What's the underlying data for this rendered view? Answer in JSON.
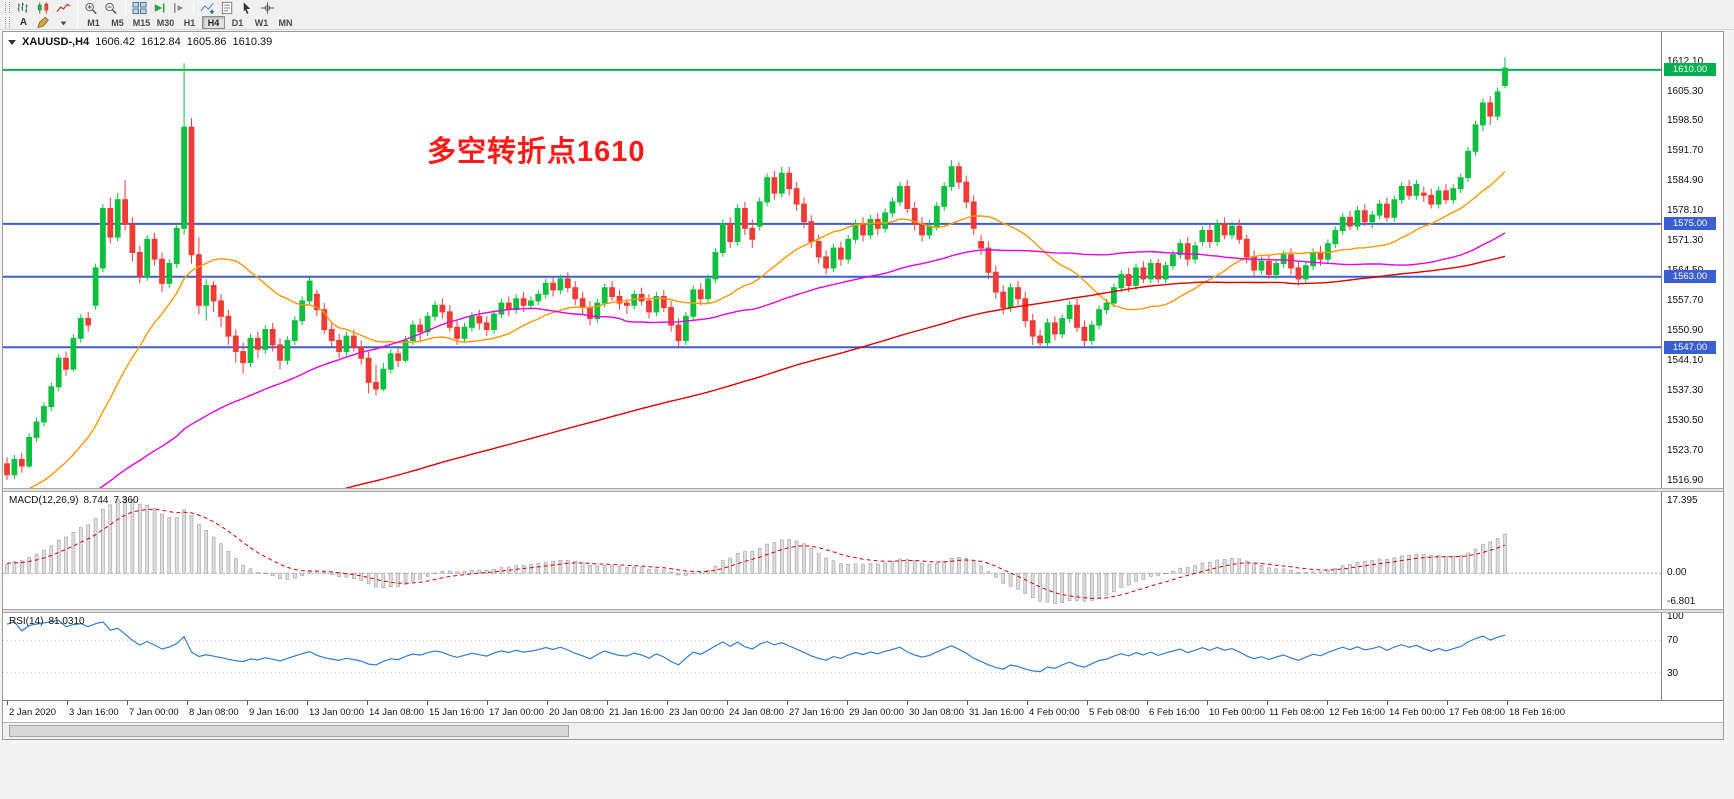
{
  "toolbar": {
    "row1_icons": [
      "bar-chart-icon",
      "candlestick-chart-icon",
      "line-chart-icon",
      "zoom-in-icon",
      "zoom-out-icon",
      "tile-windows-icon",
      "auto-scroll-icon",
      "chart-shift-icon",
      "indicators-icon",
      "templates-icon",
      "cursor-icon",
      "crosshair-icon"
    ],
    "text_tool_label": "A",
    "draw_tool_icons": [
      "pencil-icon",
      "dropdown-arrow-icon"
    ],
    "timeframes": [
      "M1",
      "M5",
      "M15",
      "M30",
      "H1",
      "H4",
      "D1",
      "W1",
      "MN"
    ],
    "active_timeframe": "H4"
  },
  "chart_data": {
    "type": "candlestick",
    "header": {
      "title": "XAUUSD-,H4",
      "open": "1606.42",
      "high": "1612.84",
      "low": "1605.86",
      "close": "1610.39"
    },
    "ylim": [
      1515.0,
      1618.6
    ],
    "colors": {
      "up": "#0fbf3f",
      "down": "#ef3b36",
      "background": "#ffffff"
    },
    "moving_averages": [
      {
        "name": "ma-fast",
        "window": 20,
        "color": "#ff9800"
      },
      {
        "name": "ma-mid",
        "window": 60,
        "color": "#e600e6"
      },
      {
        "name": "ma-slow",
        "window": 150,
        "color": "#dd0000"
      }
    ],
    "hlines": [
      {
        "price": 1610.0,
        "label": "1610.00",
        "color": "#00b050",
        "width": 2
      },
      {
        "price": 1575.0,
        "label": "1575.00",
        "color": "#3a5fd0",
        "width": 2
      },
      {
        "price": 1563.0,
        "label": "1563.00",
        "color": "#3a5fd0",
        "width": 2
      },
      {
        "price": 1547.0,
        "label": "1547.00",
        "color": "#3a5fd0",
        "width": 2
      }
    ],
    "annotation": {
      "text": "多空转折点1610",
      "color": "#ff1a1a"
    },
    "price_axis_labels": [
      "1612.10",
      "1605.30",
      "1598.50",
      "1591.70",
      "1584.90",
      "1578.10",
      "1571.30",
      "1564.50",
      "1557.70",
      "1550.90",
      "1544.10",
      "1537.30",
      "1530.50",
      "1523.70",
      "1516.90"
    ],
    "time_axis_labels": [
      "2 Jan 2020",
      "3 Jan 16:00",
      "7 Jan 00:00",
      "8 Jan 08:00",
      "9 Jan 16:00",
      "13 Jan 00:00",
      "14 Jan 08:00",
      "15 Jan 16:00",
      "17 Jan 00:00",
      "20 Jan 08:00",
      "21 Jan 16:00",
      "23 Jan 00:00",
      "24 Jan 08:00",
      "27 Jan 16:00",
      "29 Jan 00:00",
      "30 Jan 08:00",
      "31 Jan 16:00",
      "4 Feb 00:00",
      "5 Feb 08:00",
      "6 Feb 16:00",
      "10 Feb 00:00",
      "11 Feb 08:00",
      "12 Feb 16:00",
      "14 Feb 00:00",
      "17 Feb 08:00",
      "18 Feb 16:00"
    ],
    "macd": {
      "label": "MACD(12,26,9)",
      "value_main": "8.744",
      "value_signal": "7.360",
      "fast": 12,
      "slow": 26,
      "signal": 9,
      "axis_labels": [
        "17.395",
        "0.00",
        "-6.801"
      ],
      "hist_fill": "#dedede",
      "hist_stroke": "#9e9e9e",
      "signal_color": "#dd0000"
    },
    "rsi": {
      "label": "RSI(14)",
      "value": "81.0310",
      "period": 14,
      "axis_labels": [
        "100",
        "70",
        "30"
      ],
      "levels": [
        70,
        30
      ],
      "color": "#2f7ed8"
    },
    "candles": [
      [
        1520.5,
        1522.0,
        1516.8,
        1518.0
      ],
      [
        1518.0,
        1522.5,
        1517.0,
        1521.5
      ],
      [
        1521.5,
        1523.0,
        1518.5,
        1520.0
      ],
      [
        1520.0,
        1527.5,
        1519.5,
        1526.5
      ],
      [
        1526.5,
        1531.0,
        1525.5,
        1530.0
      ],
      [
        1530.0,
        1534.5,
        1529.0,
        1533.5
      ],
      [
        1533.5,
        1539.0,
        1532.5,
        1538.0
      ],
      [
        1538.0,
        1545.5,
        1537.0,
        1544.5
      ],
      [
        1544.5,
        1546.0,
        1540.5,
        1542.0
      ],
      [
        1542.0,
        1550.0,
        1541.5,
        1549.0
      ],
      [
        1549.0,
        1554.5,
        1548.0,
        1553.5
      ],
      [
        1553.5,
        1555.0,
        1550.5,
        1552.0
      ],
      [
        1556.5,
        1566.0,
        1555.5,
        1565.0
      ],
      [
        1565.0,
        1579.5,
        1564.0,
        1578.5
      ],
      [
        1578.5,
        1581.0,
        1570.5,
        1572.0
      ],
      [
        1572.0,
        1582.0,
        1571.0,
        1580.5
      ],
      [
        1580.5,
        1585.0,
        1573.5,
        1575.0
      ],
      [
        1575.0,
        1576.5,
        1566.5,
        1568.5
      ],
      [
        1568.5,
        1570.0,
        1561.5,
        1563.0
      ],
      [
        1563.0,
        1572.5,
        1562.0,
        1571.5
      ],
      [
        1571.5,
        1573.0,
        1565.5,
        1567.0
      ],
      [
        1567.0,
        1568.5,
        1559.5,
        1561.5
      ],
      [
        1561.5,
        1567.0,
        1560.5,
        1566.0
      ],
      [
        1566.0,
        1575.0,
        1565.0,
        1574.0
      ],
      [
        1574.0,
        1611.5,
        1572.5,
        1597.0
      ],
      [
        1597.0,
        1599.0,
        1566.0,
        1568.0
      ],
      [
        1568.0,
        1572.0,
        1554.5,
        1556.5
      ],
      [
        1556.5,
        1562.5,
        1553.0,
        1561.0
      ],
      [
        1561.0,
        1562.0,
        1555.0,
        1557.5
      ],
      [
        1557.5,
        1559.0,
        1551.5,
        1554.0
      ],
      [
        1554.0,
        1555.5,
        1547.5,
        1549.5
      ],
      [
        1549.5,
        1551.0,
        1543.5,
        1546.0
      ],
      [
        1546.0,
        1548.0,
        1541.0,
        1543.5
      ],
      [
        1543.5,
        1550.0,
        1542.5,
        1549.0
      ],
      [
        1549.0,
        1550.5,
        1544.5,
        1546.5
      ],
      [
        1546.5,
        1552.0,
        1545.5,
        1551.0
      ],
      [
        1551.0,
        1552.5,
        1546.0,
        1547.5
      ],
      [
        1547.5,
        1549.0,
        1542.0,
        1544.0
      ],
      [
        1544.0,
        1549.5,
        1543.0,
        1548.5
      ],
      [
        1548.5,
        1554.0,
        1547.5,
        1553.0
      ],
      [
        1553.0,
        1558.5,
        1552.0,
        1557.5
      ],
      [
        1557.5,
        1563.0,
        1556.5,
        1562.0
      ],
      [
        1559.0,
        1560.0,
        1554.0,
        1555.5
      ],
      [
        1555.5,
        1557.0,
        1550.0,
        1551.0
      ],
      [
        1551.0,
        1552.5,
        1547.0,
        1548.5
      ],
      [
        1548.5,
        1550.0,
        1544.5,
        1546.0
      ],
      [
        1546.0,
        1550.5,
        1545.0,
        1549.5
      ],
      [
        1549.5,
        1551.0,
        1546.0,
        1547.0
      ],
      [
        1547.0,
        1548.5,
        1543.0,
        1544.5
      ],
      [
        1544.5,
        1546.0,
        1536.5,
        1539.0
      ],
      [
        1539.0,
        1543.0,
        1536.0,
        1537.5
      ],
      [
        1537.5,
        1543.5,
        1537.0,
        1542.0
      ],
      [
        1542.0,
        1546.5,
        1541.0,
        1545.5
      ],
      [
        1545.5,
        1547.0,
        1542.5,
        1544.0
      ],
      [
        1544.0,
        1549.5,
        1543.5,
        1548.5
      ],
      [
        1548.5,
        1553.0,
        1547.5,
        1552.0
      ],
      [
        1552.0,
        1553.5,
        1548.5,
        1550.5
      ],
      [
        1550.5,
        1555.0,
        1549.5,
        1554.0
      ],
      [
        1554.0,
        1557.5,
        1553.0,
        1556.5
      ],
      [
        1556.5,
        1558.0,
        1553.5,
        1555.0
      ],
      [
        1555.0,
        1556.5,
        1550.5,
        1551.5
      ],
      [
        1551.5,
        1553.0,
        1547.5,
        1549.0
      ],
      [
        1549.0,
        1552.5,
        1548.0,
        1551.5
      ],
      [
        1551.5,
        1555.0,
        1550.5,
        1554.0
      ],
      [
        1554.0,
        1555.5,
        1551.0,
        1552.5
      ],
      [
        1552.5,
        1554.0,
        1549.5,
        1551.0
      ],
      [
        1551.0,
        1555.5,
        1550.0,
        1554.5
      ],
      [
        1554.5,
        1558.0,
        1553.5,
        1557.0
      ],
      [
        1557.0,
        1558.5,
        1554.0,
        1555.5
      ],
      [
        1555.5,
        1559.0,
        1554.5,
        1558.0
      ],
      [
        1558.0,
        1559.5,
        1555.0,
        1556.5
      ],
      [
        1556.5,
        1558.5,
        1555.5,
        1557.5
      ],
      [
        1557.5,
        1560.0,
        1556.5,
        1559.0
      ],
      [
        1559.0,
        1562.5,
        1558.0,
        1561.5
      ],
      [
        1561.5,
        1563.0,
        1558.5,
        1560.0
      ],
      [
        1560.0,
        1563.5,
        1559.0,
        1562.5
      ],
      [
        1562.5,
        1564.0,
        1559.5,
        1560.5
      ],
      [
        1560.5,
        1562.0,
        1556.5,
        1558.0
      ],
      [
        1558.0,
        1559.5,
        1554.5,
        1556.0
      ],
      [
        1556.0,
        1557.5,
        1552.0,
        1553.5
      ],
      [
        1553.5,
        1558.0,
        1552.5,
        1557.0
      ],
      [
        1557.0,
        1561.5,
        1556.0,
        1560.5
      ],
      [
        1560.5,
        1562.0,
        1557.5,
        1558.5
      ],
      [
        1558.5,
        1560.0,
        1555.5,
        1557.0
      ],
      [
        1557.0,
        1558.0,
        1554.5,
        1556.5
      ],
      [
        1556.5,
        1560.0,
        1555.5,
        1559.0
      ],
      [
        1559.0,
        1560.5,
        1556.5,
        1557.5
      ],
      [
        1557.5,
        1559.0,
        1553.5,
        1555.0
      ],
      [
        1555.0,
        1559.5,
        1554.0,
        1558.5
      ],
      [
        1558.5,
        1560.0,
        1555.0,
        1556.0
      ],
      [
        1556.0,
        1557.5,
        1550.5,
        1552.0
      ],
      [
        1552.0,
        1553.5,
        1547.0,
        1548.5
      ],
      [
        1548.5,
        1555.0,
        1547.5,
        1554.0
      ],
      [
        1554.0,
        1561.0,
        1553.0,
        1560.0
      ],
      [
        1560.0,
        1561.5,
        1556.5,
        1558.0
      ],
      [
        1558.0,
        1563.5,
        1557.0,
        1562.5
      ],
      [
        1562.5,
        1569.5,
        1561.5,
        1568.5
      ],
      [
        1568.5,
        1576.0,
        1567.5,
        1575.0
      ],
      [
        1575.0,
        1576.5,
        1569.5,
        1571.0
      ],
      [
        1571.0,
        1579.5,
        1570.0,
        1578.5
      ],
      [
        1578.5,
        1580.0,
        1572.5,
        1574.0
      ],
      [
        1574.0,
        1576.0,
        1569.5,
        1571.5
      ],
      [
        1574.5,
        1581.0,
        1573.5,
        1580.0
      ],
      [
        1580.0,
        1586.5,
        1579.0,
        1585.5
      ],
      [
        1585.5,
        1587.0,
        1580.5,
        1582.0
      ],
      [
        1582.0,
        1588.0,
        1581.0,
        1586.5
      ],
      [
        1586.5,
        1588.0,
        1581.5,
        1583.0
      ],
      [
        1583.0,
        1584.5,
        1578.0,
        1579.5
      ],
      [
        1579.5,
        1581.0,
        1574.0,
        1575.5
      ],
      [
        1575.5,
        1577.0,
        1569.5,
        1571.0
      ],
      [
        1571.0,
        1572.5,
        1566.0,
        1567.5
      ],
      [
        1567.5,
        1569.0,
        1563.5,
        1565.0
      ],
      [
        1565.0,
        1570.5,
        1564.0,
        1569.5
      ],
      [
        1569.5,
        1571.0,
        1565.5,
        1567.0
      ],
      [
        1567.0,
        1572.5,
        1566.0,
        1571.5
      ],
      [
        1571.5,
        1576.0,
        1570.5,
        1575.0
      ],
      [
        1575.0,
        1576.5,
        1571.0,
        1572.5
      ],
      [
        1572.5,
        1577.0,
        1571.5,
        1576.0
      ],
      [
        1576.0,
        1577.5,
        1572.5,
        1574.0
      ],
      [
        1574.0,
        1578.5,
        1573.0,
        1577.5
      ],
      [
        1577.5,
        1581.0,
        1576.5,
        1580.0
      ],
      [
        1580.0,
        1584.5,
        1579.0,
        1583.5
      ],
      [
        1583.5,
        1585.0,
        1577.5,
        1578.5
      ],
      [
        1578.5,
        1580.0,
        1573.5,
        1575.0
      ],
      [
        1575.0,
        1576.5,
        1571.0,
        1572.5
      ],
      [
        1572.5,
        1576.0,
        1571.5,
        1574.5
      ],
      [
        1574.5,
        1580.0,
        1573.5,
        1579.0
      ],
      [
        1579.0,
        1584.5,
        1578.0,
        1583.5
      ],
      [
        1583.5,
        1589.5,
        1582.5,
        1588.0
      ],
      [
        1588.0,
        1589.0,
        1583.0,
        1584.5
      ],
      [
        1584.5,
        1586.0,
        1578.5,
        1580.0
      ],
      [
        1580.0,
        1581.5,
        1572.5,
        1574.0
      ],
      [
        1571.0,
        1572.5,
        1568.0,
        1569.5
      ],
      [
        1569.5,
        1571.0,
        1562.5,
        1564.0
      ],
      [
        1564.0,
        1565.5,
        1558.0,
        1559.5
      ],
      [
        1559.5,
        1561.0,
        1554.5,
        1556.0
      ],
      [
        1556.0,
        1561.5,
        1555.0,
        1560.5
      ],
      [
        1560.5,
        1562.0,
        1556.5,
        1558.0
      ],
      [
        1558.0,
        1559.5,
        1551.5,
        1553.0
      ],
      [
        1553.0,
        1554.5,
        1547.5,
        1549.5
      ],
      [
        1549.5,
        1551.0,
        1546.8,
        1548.0
      ],
      [
        1548.0,
        1553.5,
        1547.0,
        1552.5
      ],
      [
        1552.5,
        1554.0,
        1548.5,
        1550.0
      ],
      [
        1550.0,
        1554.5,
        1549.0,
        1553.5
      ],
      [
        1553.5,
        1557.5,
        1552.5,
        1556.5
      ],
      [
        1556.5,
        1558.0,
        1550.5,
        1551.5
      ],
      [
        1551.5,
        1553.0,
        1547.2,
        1548.5
      ],
      [
        1548.5,
        1553.0,
        1547.5,
        1552.0
      ],
      [
        1552.0,
        1556.5,
        1551.0,
        1555.5
      ],
      [
        1555.5,
        1558.0,
        1554.5,
        1557.0
      ],
      [
        1557.0,
        1561.5,
        1556.0,
        1560.5
      ],
      [
        1560.5,
        1564.5,
        1559.5,
        1563.5
      ],
      [
        1563.5,
        1565.0,
        1559.5,
        1561.0
      ],
      [
        1561.0,
        1566.0,
        1560.0,
        1565.0
      ],
      [
        1565.0,
        1566.5,
        1561.5,
        1562.5
      ],
      [
        1562.5,
        1567.0,
        1561.5,
        1566.0
      ],
      [
        1566.0,
        1567.0,
        1561.5,
        1562.5
      ],
      [
        1562.5,
        1566.5,
        1561.5,
        1565.5
      ],
      [
        1565.5,
        1569.0,
        1564.5,
        1568.0
      ],
      [
        1568.0,
        1571.5,
        1567.0,
        1570.5
      ],
      [
        1570.5,
        1572.0,
        1565.5,
        1567.0
      ],
      [
        1567.0,
        1571.0,
        1566.0,
        1570.0
      ],
      [
        1571.0,
        1574.5,
        1570.0,
        1573.5
      ],
      [
        1573.5,
        1575.0,
        1569.5,
        1571.0
      ],
      [
        1571.0,
        1576.0,
        1570.0,
        1575.0
      ],
      [
        1575.0,
        1576.5,
        1571.5,
        1572.5
      ],
      [
        1572.5,
        1575.5,
        1571.5,
        1574.5
      ],
      [
        1574.5,
        1576.0,
        1570.5,
        1571.5
      ],
      [
        1571.5,
        1572.5,
        1566.0,
        1567.5
      ],
      [
        1567.5,
        1569.0,
        1563.0,
        1564.5
      ],
      [
        1564.5,
        1567.5,
        1563.5,
        1566.5
      ],
      [
        1566.5,
        1568.0,
        1562.5,
        1563.5
      ],
      [
        1563.5,
        1567.0,
        1562.5,
        1566.0
      ],
      [
        1566.0,
        1569.0,
        1565.0,
        1568.0
      ],
      [
        1568.0,
        1569.5,
        1563.5,
        1565.0
      ],
      [
        1565.0,
        1566.5,
        1561.0,
        1562.5
      ],
      [
        1562.5,
        1566.5,
        1561.5,
        1565.5
      ],
      [
        1565.5,
        1569.5,
        1564.5,
        1568.5
      ],
      [
        1568.5,
        1570.0,
        1565.5,
        1567.0
      ],
      [
        1567.0,
        1571.5,
        1566.0,
        1570.5
      ],
      [
        1570.5,
        1574.5,
        1569.5,
        1573.5
      ],
      [
        1573.5,
        1577.5,
        1572.5,
        1576.5
      ],
      [
        1576.5,
        1578.0,
        1573.5,
        1574.5
      ],
      [
        1574.5,
        1579.0,
        1573.5,
        1578.0
      ],
      [
        1578.0,
        1579.5,
        1574.5,
        1575.5
      ],
      [
        1575.5,
        1578.0,
        1574.0,
        1577.0
      ],
      [
        1577.0,
        1580.5,
        1576.0,
        1579.5
      ],
      [
        1579.5,
        1581.0,
        1575.5,
        1576.5
      ],
      [
        1576.5,
        1581.5,
        1575.5,
        1580.5
      ],
      [
        1580.5,
        1584.5,
        1579.5,
        1583.5
      ],
      [
        1583.5,
        1585.0,
        1580.5,
        1581.5
      ],
      [
        1581.5,
        1585.0,
        1580.5,
        1584.0
      ],
      [
        1582.0,
        1583.5,
        1580.0,
        1581.5
      ],
      [
        1581.5,
        1583.0,
        1578.5,
        1579.5
      ],
      [
        1579.5,
        1583.5,
        1578.5,
        1582.5
      ],
      [
        1582.5,
        1584.0,
        1579.5,
        1580.5
      ],
      [
        1580.5,
        1584.0,
        1579.5,
        1583.0
      ],
      [
        1583.0,
        1586.5,
        1582.0,
        1585.5
      ],
      [
        1585.5,
        1592.5,
        1584.5,
        1591.5
      ],
      [
        1591.5,
        1598.5,
        1590.5,
        1597.5
      ],
      [
        1597.5,
        1603.5,
        1596.0,
        1602.5
      ],
      [
        1602.5,
        1604.0,
        1597.5,
        1599.5
      ],
      [
        1599.5,
        1606.0,
        1598.5,
        1605.0
      ],
      [
        1606.42,
        1612.84,
        1605.86,
        1610.39
      ]
    ]
  }
}
